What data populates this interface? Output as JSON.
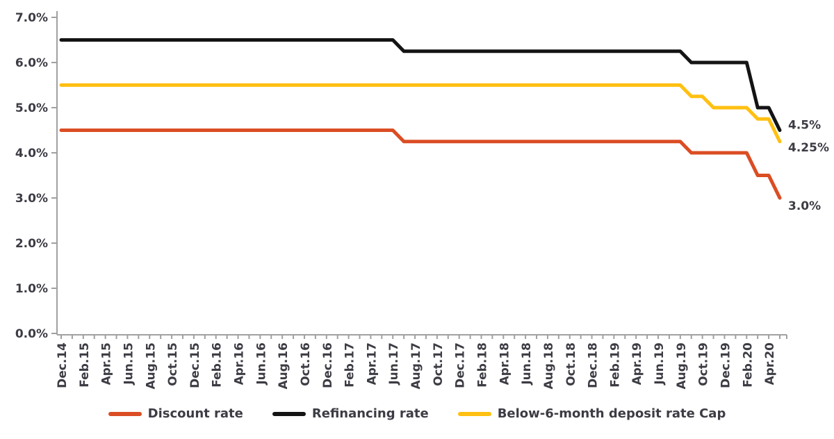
{
  "chart_data": {
    "type": "line",
    "title": "",
    "xlabel": "",
    "ylabel": "",
    "ylim": [
      0,
      7
    ],
    "y_tick_labels": [
      "0.0%",
      "1.0%",
      "2.0%",
      "3.0%",
      "4.0%",
      "5.0%",
      "6.0%",
      "7.0%"
    ],
    "n_points": 66,
    "x_start": "Dec.14",
    "x_end_unlabeled": "May.20",
    "x_tick_labels": [
      "Dec.14",
      "Feb.15",
      "Apr.15",
      "Jun.15",
      "Aug.15",
      "Oct.15",
      "Dec.15",
      "Feb.16",
      "Apr.16",
      "Jun.16",
      "Aug.16",
      "Oct.16",
      "Dec.16",
      "Feb.17",
      "Apr.17",
      "Jun.17",
      "Aug.17",
      "Oct.17",
      "Dec.17",
      "Feb.18",
      "Apr.18",
      "Jun.18",
      "Aug.18",
      "Oct.18",
      "Dec.18",
      "Feb.19",
      "Apr.19",
      "Jun.19",
      "Aug.19",
      "Oct.19",
      "Dec.19",
      "Feb.20",
      "Apr.20"
    ],
    "x_label_month_step": 2,
    "grid": false,
    "legend_position": "bottom",
    "axis_color": "#a0a0a0",
    "text_color": "#3c3c44",
    "series": [
      {
        "name": "Discount rate",
        "color": "#db4d23",
        "values": [
          4.5,
          4.5,
          4.5,
          4.5,
          4.5,
          4.5,
          4.5,
          4.5,
          4.5,
          4.5,
          4.5,
          4.5,
          4.5,
          4.5,
          4.5,
          4.5,
          4.5,
          4.5,
          4.5,
          4.5,
          4.5,
          4.5,
          4.5,
          4.5,
          4.5,
          4.5,
          4.5,
          4.5,
          4.5,
          4.5,
          4.5,
          4.25,
          4.25,
          4.25,
          4.25,
          4.25,
          4.25,
          4.25,
          4.25,
          4.25,
          4.25,
          4.25,
          4.25,
          4.25,
          4.25,
          4.25,
          4.25,
          4.25,
          4.25,
          4.25,
          4.25,
          4.25,
          4.25,
          4.25,
          4.25,
          4.25,
          4.25,
          4.0,
          4.0,
          4.0,
          4.0,
          4.0,
          4.0,
          3.5,
          3.5,
          3.0
        ]
      },
      {
        "name": "Refinancing rate",
        "color": "#141414",
        "values": [
          6.5,
          6.5,
          6.5,
          6.5,
          6.5,
          6.5,
          6.5,
          6.5,
          6.5,
          6.5,
          6.5,
          6.5,
          6.5,
          6.5,
          6.5,
          6.5,
          6.5,
          6.5,
          6.5,
          6.5,
          6.5,
          6.5,
          6.5,
          6.5,
          6.5,
          6.5,
          6.5,
          6.5,
          6.5,
          6.5,
          6.5,
          6.25,
          6.25,
          6.25,
          6.25,
          6.25,
          6.25,
          6.25,
          6.25,
          6.25,
          6.25,
          6.25,
          6.25,
          6.25,
          6.25,
          6.25,
          6.25,
          6.25,
          6.25,
          6.25,
          6.25,
          6.25,
          6.25,
          6.25,
          6.25,
          6.25,
          6.25,
          6.0,
          6.0,
          6.0,
          6.0,
          6.0,
          6.0,
          5.0,
          5.0,
          4.5
        ]
      },
      {
        "name": "Below-6-month deposit rate Cap",
        "color": "#ffc011",
        "values": [
          5.5,
          5.5,
          5.5,
          5.5,
          5.5,
          5.5,
          5.5,
          5.5,
          5.5,
          5.5,
          5.5,
          5.5,
          5.5,
          5.5,
          5.5,
          5.5,
          5.5,
          5.5,
          5.5,
          5.5,
          5.5,
          5.5,
          5.5,
          5.5,
          5.5,
          5.5,
          5.5,
          5.5,
          5.5,
          5.5,
          5.5,
          5.5,
          5.5,
          5.5,
          5.5,
          5.5,
          5.5,
          5.5,
          5.5,
          5.5,
          5.5,
          5.5,
          5.5,
          5.5,
          5.5,
          5.5,
          5.5,
          5.5,
          5.5,
          5.5,
          5.5,
          5.5,
          5.5,
          5.5,
          5.5,
          5.5,
          5.5,
          5.25,
          5.25,
          5.0,
          5.0,
          5.0,
          5.0,
          4.75,
          4.75,
          4.25
        ]
      }
    ],
    "end_labels": [
      {
        "text": "4.5%",
        "value": 4.5,
        "series": "Refinancing rate"
      },
      {
        "text": "4.25%",
        "value": 4.25,
        "series": "Below-6-month deposit rate Cap"
      },
      {
        "text": "3.0%",
        "value": 3.0,
        "series": "Discount rate"
      }
    ]
  }
}
